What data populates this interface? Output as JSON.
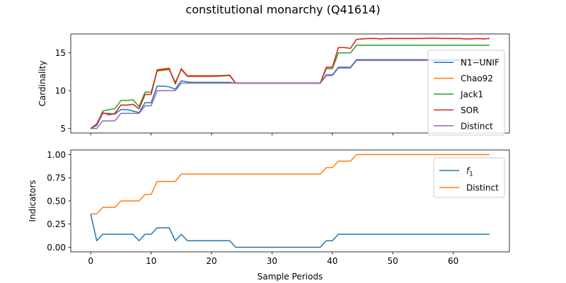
{
  "figure": {
    "title": "constitutional monarchy (Q41614)"
  },
  "chart_data": [
    {
      "type": "line",
      "panel": "top",
      "ylabel": "Cardinality",
      "xlabel": "",
      "xlim": [
        -3.3,
        69.3
      ],
      "ylim": [
        4.4,
        17.5
      ],
      "xticks": [
        0,
        10,
        20,
        30,
        40,
        50,
        60
      ],
      "yticks": [
        5,
        10,
        15
      ],
      "legend_position": "right",
      "grid": false,
      "series": [
        {
          "name": "N1−UNIF",
          "color": "#1f77b4",
          "x": [
            0,
            1,
            2,
            3,
            4,
            5,
            6,
            7,
            8,
            9,
            10,
            11,
            12,
            13,
            14,
            15,
            16,
            17,
            18,
            19,
            20,
            21,
            22,
            23,
            24,
            25,
            26,
            27,
            28,
            29,
            30,
            31,
            32,
            33,
            34,
            35,
            36,
            37,
            38,
            39,
            40,
            41,
            42,
            43,
            44,
            45,
            46,
            47,
            48,
            49,
            50,
            51,
            52,
            53,
            54,
            55,
            56,
            57,
            58,
            59,
            60,
            61,
            62,
            63,
            64,
            65,
            66
          ],
          "values": [
            5,
            5.4,
            7,
            7,
            6.9,
            7.5,
            7.5,
            7.3,
            7.1,
            8.4,
            8.4,
            10.6,
            10.6,
            10.5,
            10.2,
            11.3,
            11.15,
            11.1,
            11.1,
            11.1,
            11.1,
            11.1,
            11.1,
            11.1,
            11,
            11,
            11,
            11,
            11,
            11,
            11,
            11,
            11,
            11,
            11,
            11,
            11,
            11,
            11,
            12.1,
            12.1,
            13.1,
            13.1,
            13.1,
            14.1,
            14.1,
            14.1,
            14.1,
            14.1,
            14.1,
            14.1,
            14.1,
            14.1,
            14.1,
            14.1,
            14.1,
            14.1,
            14.1,
            14.1,
            14.1,
            14.1,
            14.1,
            14.1,
            14.1,
            14.1,
            14.1,
            14.1
          ]
        },
        {
          "name": "Chao92",
          "color": "#ff7f0e",
          "x": [
            0,
            1,
            2,
            3,
            4,
            5,
            6,
            7,
            8,
            9,
            10,
            11,
            12,
            13,
            14,
            15,
            16,
            17,
            18,
            19,
            20,
            21,
            22,
            23,
            24,
            25,
            26,
            27,
            28,
            29,
            30,
            31,
            32,
            33,
            34,
            35,
            36,
            37,
            38,
            39,
            40,
            41,
            42,
            43,
            44,
            45,
            46,
            47,
            48,
            49,
            50,
            51,
            52,
            53,
            54,
            55,
            56,
            57,
            58,
            59,
            60,
            61,
            62,
            63,
            64,
            65,
            66
          ],
          "values": [
            5,
            5.6,
            7.1,
            6.8,
            7,
            8.1,
            8.1,
            8.2,
            7.6,
            9.5,
            9.5,
            12.8,
            12.9,
            13,
            10.9,
            12.9,
            12,
            12,
            12,
            12,
            12,
            12,
            12,
            12.1,
            11,
            11,
            11,
            11,
            11,
            11,
            11,
            11,
            11,
            11,
            11,
            11,
            11,
            11,
            11,
            13.1,
            13.1,
            15.7,
            15.7,
            15.6,
            16.8,
            16.85,
            16.9,
            16.9,
            16.85,
            16.9,
            16.9,
            16.9,
            16.9,
            16.9,
            16.9,
            16.9,
            16.95,
            16.95,
            16.9,
            16.9,
            16.9,
            16.9,
            16.85,
            16.85,
            16.9,
            16.85,
            16.9
          ]
        },
        {
          "name": "Jack1",
          "color": "#2ca02c",
          "x": [
            0,
            1,
            2,
            3,
            4,
            5,
            6,
            7,
            8,
            9,
            10,
            11,
            12,
            13,
            14,
            15,
            16,
            17,
            18,
            19,
            20,
            21,
            22,
            23,
            24,
            25,
            26,
            27,
            28,
            29,
            30,
            31,
            32,
            33,
            34,
            35,
            36,
            37,
            38,
            39,
            40,
            41,
            42,
            43,
            44,
            45,
            46,
            47,
            48,
            49,
            50,
            51,
            52,
            53,
            54,
            55,
            56,
            57,
            58,
            59,
            60,
            61,
            62,
            63,
            64,
            65,
            66
          ],
          "values": [
            5,
            5.5,
            7.3,
            7.5,
            7.6,
            8.7,
            8.7,
            8.8,
            7.9,
            9.8,
            9.8,
            12.6,
            12.7,
            12.8,
            11.1,
            12.8,
            11.9,
            11.9,
            11.9,
            11.9,
            11.9,
            11.9,
            11.95,
            12,
            11,
            11,
            11,
            11,
            11,
            11,
            11,
            11,
            11,
            11,
            11,
            11,
            11,
            11,
            11,
            12.9,
            12.9,
            15,
            15,
            15,
            16,
            16,
            16,
            16,
            16,
            16,
            16,
            16,
            16,
            16,
            16,
            16,
            16,
            16,
            16,
            16,
            16,
            16,
            16,
            16,
            16,
            16,
            16
          ]
        },
        {
          "name": "SOR",
          "color": "#d62728",
          "x": [
            0,
            1,
            2,
            3,
            4,
            5,
            6,
            7,
            8,
            9,
            10,
            11,
            12,
            13,
            14,
            15,
            16,
            17,
            18,
            19,
            20,
            21,
            22,
            23,
            24,
            25,
            26,
            27,
            28,
            29,
            30,
            31,
            32,
            33,
            34,
            35,
            36,
            37,
            38,
            39,
            40,
            41,
            42,
            43,
            44,
            45,
            46,
            47,
            48,
            49,
            50,
            51,
            52,
            53,
            54,
            55,
            56,
            57,
            58,
            59,
            60,
            61,
            62,
            63,
            64,
            65,
            66
          ],
          "values": [
            5,
            5.6,
            7.1,
            6.8,
            7,
            8.1,
            8.1,
            8.2,
            7.6,
            9.5,
            9.5,
            12.7,
            12.8,
            12.9,
            10.9,
            12.9,
            11.9,
            11.9,
            11.9,
            11.9,
            11.9,
            11.95,
            12,
            12,
            11,
            11,
            11,
            11,
            11,
            11,
            11,
            11,
            11,
            11,
            11,
            11,
            11,
            11,
            11,
            13.1,
            13.1,
            15.7,
            15.7,
            15.6,
            16.8,
            16.85,
            16.9,
            16.9,
            16.85,
            16.9,
            16.9,
            16.9,
            16.9,
            16.9,
            16.9,
            16.9,
            16.95,
            16.95,
            16.9,
            16.9,
            16.9,
            16.9,
            16.85,
            16.85,
            16.9,
            16.85,
            16.9
          ]
        },
        {
          "name": "Distinct",
          "color": "#9467bd",
          "x": [
            0,
            1,
            2,
            3,
            4,
            5,
            6,
            7,
            8,
            9,
            10,
            11,
            12,
            13,
            14,
            15,
            16,
            17,
            18,
            19,
            20,
            21,
            22,
            23,
            24,
            25,
            26,
            27,
            28,
            29,
            30,
            31,
            32,
            33,
            34,
            35,
            36,
            37,
            38,
            39,
            40,
            41,
            42,
            43,
            44,
            45,
            46,
            47,
            48,
            49,
            50,
            51,
            52,
            53,
            54,
            55,
            56,
            57,
            58,
            59,
            60,
            61,
            62,
            63,
            64,
            65,
            66
          ],
          "values": [
            5,
            5,
            6,
            6,
            6,
            7,
            7,
            7,
            7,
            8,
            8,
            10,
            10,
            10,
            10,
            11,
            11,
            11,
            11,
            11,
            11,
            11,
            11,
            11,
            11,
            11,
            11,
            11,
            11,
            11,
            11,
            11,
            11,
            11,
            11,
            11,
            11,
            11,
            11,
            12,
            12,
            13,
            13,
            13,
            14,
            14,
            14,
            14,
            14,
            14,
            14,
            14,
            14,
            14,
            14,
            14,
            14,
            14,
            14,
            14,
            14,
            14,
            14,
            14,
            14,
            14,
            14
          ]
        }
      ]
    },
    {
      "type": "line",
      "panel": "bottom",
      "ylabel": "Indicators",
      "xlabel": "Sample Periods",
      "xlim": [
        -3.3,
        69.3
      ],
      "ylim": [
        -0.05,
        1.05
      ],
      "xticks": [
        0,
        10,
        20,
        30,
        40,
        50,
        60
      ],
      "yticks": [
        0.0,
        0.25,
        0.5,
        0.75,
        1.0
      ],
      "ytick_labels": [
        "0.00",
        "0.25",
        "0.50",
        "0.75",
        "1.00"
      ],
      "legend_position": "upper right",
      "grid": false,
      "series": [
        {
          "name": "f1",
          "legend_base": "f",
          "legend_sub": "1",
          "color": "#1f77b4",
          "x": [
            0,
            1,
            2,
            3,
            4,
            5,
            6,
            7,
            8,
            9,
            10,
            11,
            12,
            13,
            14,
            15,
            16,
            17,
            18,
            19,
            20,
            21,
            22,
            23,
            24,
            25,
            26,
            27,
            28,
            29,
            30,
            31,
            32,
            33,
            34,
            35,
            36,
            37,
            38,
            39,
            40,
            41,
            42,
            43,
            44,
            45,
            46,
            47,
            48,
            49,
            50,
            51,
            52,
            53,
            54,
            55,
            56,
            57,
            58,
            59,
            60,
            61,
            62,
            63,
            64,
            65,
            66
          ],
          "values": [
            0.36,
            0.07,
            0.14,
            0.14,
            0.14,
            0.14,
            0.14,
            0.14,
            0.07,
            0.14,
            0.14,
            0.21,
            0.21,
            0.21,
            0.07,
            0.14,
            0.07,
            0.07,
            0.07,
            0.07,
            0.07,
            0.07,
            0.07,
            0.07,
            0,
            0,
            0,
            0,
            0,
            0,
            0,
            0,
            0,
            0,
            0,
            0,
            0,
            0,
            0,
            0.07,
            0.07,
            0.14,
            0.14,
            0.14,
            0.14,
            0.14,
            0.14,
            0.14,
            0.14,
            0.14,
            0.14,
            0.14,
            0.14,
            0.14,
            0.14,
            0.14,
            0.14,
            0.14,
            0.14,
            0.14,
            0.14,
            0.14,
            0.14,
            0.14,
            0.14,
            0.14,
            0.14
          ]
        },
        {
          "name": "Distinct",
          "color": "#ff7f0e",
          "x": [
            0,
            1,
            2,
            3,
            4,
            5,
            6,
            7,
            8,
            9,
            10,
            11,
            12,
            13,
            14,
            15,
            16,
            17,
            18,
            19,
            20,
            21,
            22,
            23,
            24,
            25,
            26,
            27,
            28,
            29,
            30,
            31,
            32,
            33,
            34,
            35,
            36,
            37,
            38,
            39,
            40,
            41,
            42,
            43,
            44,
            45,
            46,
            47,
            48,
            49,
            50,
            51,
            52,
            53,
            54,
            55,
            56,
            57,
            58,
            59,
            60,
            61,
            62,
            63,
            64,
            65,
            66
          ],
          "values": [
            0.36,
            0.36,
            0.43,
            0.43,
            0.43,
            0.5,
            0.5,
            0.5,
            0.5,
            0.57,
            0.57,
            0.71,
            0.71,
            0.71,
            0.71,
            0.79,
            0.79,
            0.79,
            0.79,
            0.79,
            0.79,
            0.79,
            0.79,
            0.79,
            0.79,
            0.79,
            0.79,
            0.79,
            0.79,
            0.79,
            0.79,
            0.79,
            0.79,
            0.79,
            0.79,
            0.79,
            0.79,
            0.79,
            0.79,
            0.86,
            0.86,
            0.93,
            0.93,
            0.93,
            1,
            1,
            1,
            1,
            1,
            1,
            1,
            1,
            1,
            1,
            1,
            1,
            1,
            1,
            1,
            1,
            1,
            1,
            1,
            1,
            1,
            1,
            1
          ]
        }
      ]
    }
  ]
}
